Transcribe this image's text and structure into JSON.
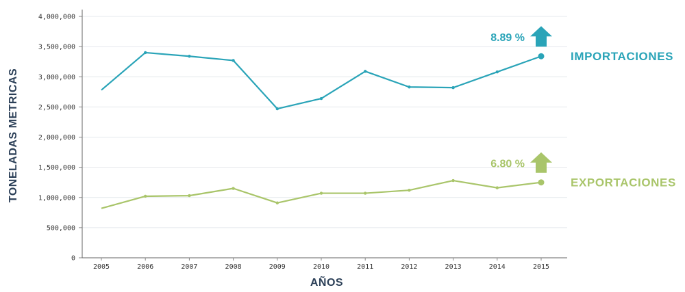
{
  "chart_data": {
    "type": "line",
    "title": "",
    "xlabel": "AÑOS",
    "ylabel": "TONELADAS METRICAS",
    "x": [
      "2005",
      "2006",
      "2007",
      "2008",
      "2009",
      "2010",
      "2011",
      "2012",
      "2013",
      "2014",
      "2015"
    ],
    "ylim": [
      0,
      4000000
    ],
    "yticks": [
      "0",
      "500,000",
      "1,000,000",
      "1,500,000",
      "2,000,000",
      "2,500,000",
      "3,000,000",
      "3,500,000",
      "4,000,000"
    ],
    "grid": true,
    "series": [
      {
        "name": "IMPORTACIONES",
        "color": "#2aa4b8",
        "values": [
          2780000,
          3400000,
          3340000,
          3270000,
          2470000,
          2640000,
          3090000,
          2830000,
          2820000,
          3080000,
          3340000
        ],
        "annotation": "8.89 %",
        "arrow": "up"
      },
      {
        "name": "EXPORTACIONES",
        "color": "#a9c56a",
        "values": [
          820000,
          1020000,
          1030000,
          1150000,
          910000,
          1070000,
          1070000,
          1120000,
          1280000,
          1160000,
          1250000
        ],
        "annotation": "6.80 %",
        "arrow": "up"
      }
    ]
  }
}
